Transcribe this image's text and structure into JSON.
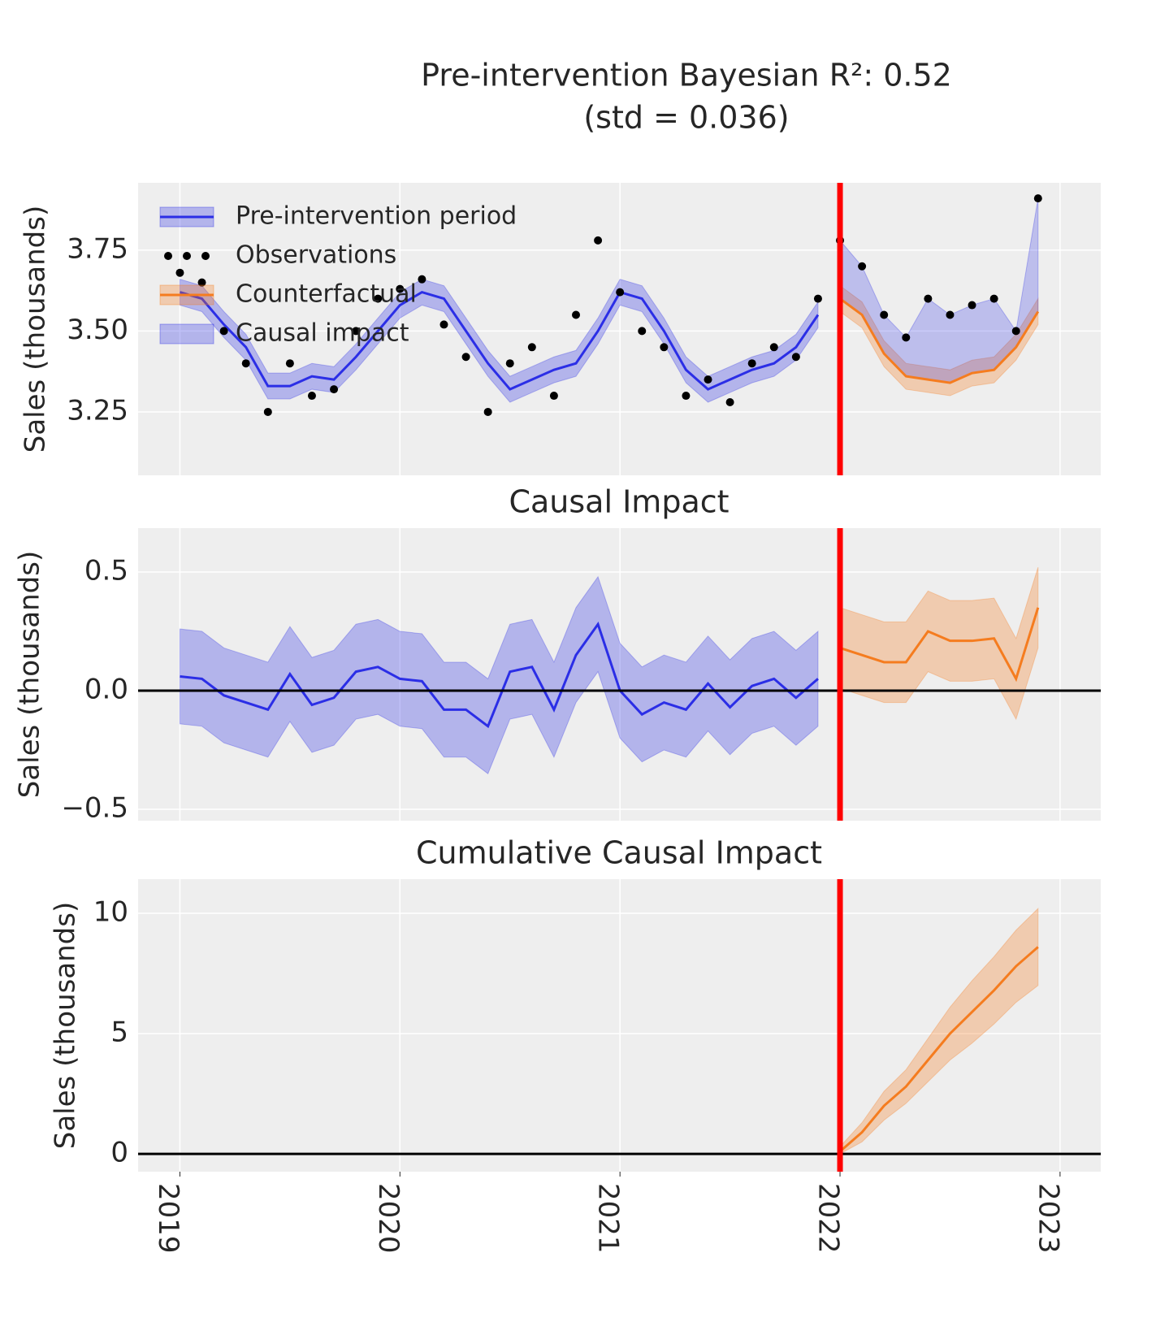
{
  "chart_data": [
    {
      "type": "line",
      "title_lines": [
        "Pre-intervention Bayesian R²: 0.52",
        "(std = 0.036)"
      ],
      "ylabel": "Sales (thousands)",
      "xlim": [
        2018.81,
        2023.185
      ],
      "xticks": [
        2019,
        2020,
        2021,
        2022,
        2023
      ],
      "ylim": [
        3.054,
        3.958
      ],
      "yticks": [
        3.25,
        {
          "value": 3.5,
          "label": "3.50"
        },
        3.75
      ],
      "grid": true,
      "vline": 2022,
      "vline_color": "#ff0000",
      "x": [
        2019.0,
        2019.1,
        2019.2,
        2019.3,
        2019.4,
        2019.5,
        2019.6,
        2019.7,
        2019.8,
        2019.9,
        2020.0,
        2020.1,
        2020.2,
        2020.3,
        2020.4,
        2020.5,
        2020.6,
        2020.7,
        2020.8,
        2020.9,
        2021.0,
        2021.1,
        2021.2,
        2021.3,
        2021.4,
        2021.5,
        2021.6,
        2021.7,
        2021.8,
        2021.9,
        2022.0,
        2022.1,
        2022.2,
        2022.3,
        2022.4,
        2022.5,
        2022.6,
        2022.7,
        2022.8,
        2022.9
      ],
      "series": [
        {
          "name": "Pre-intervention period",
          "kind": "line_band",
          "color": "#2b2ee6",
          "values": [
            3.62,
            3.6,
            3.52,
            3.45,
            3.33,
            3.33,
            3.36,
            3.35,
            3.42,
            3.5,
            3.58,
            3.62,
            3.6,
            3.5,
            3.4,
            3.32,
            3.35,
            3.38,
            3.4,
            3.5,
            3.62,
            3.6,
            3.5,
            3.38,
            3.32,
            3.35,
            3.38,
            3.4,
            3.45,
            3.55,
            null,
            null,
            null,
            null,
            null,
            null,
            null,
            null,
            null,
            null
          ],
          "lower": [
            3.58,
            3.56,
            3.48,
            3.41,
            3.29,
            3.29,
            3.32,
            3.31,
            3.38,
            3.46,
            3.54,
            3.58,
            3.56,
            3.46,
            3.36,
            3.28,
            3.31,
            3.34,
            3.36,
            3.46,
            3.58,
            3.56,
            3.46,
            3.34,
            3.28,
            3.31,
            3.34,
            3.36,
            3.41,
            3.51,
            null,
            null,
            null,
            null,
            null,
            null,
            null,
            null,
            null,
            null
          ],
          "upper": [
            3.66,
            3.64,
            3.56,
            3.49,
            3.37,
            3.37,
            3.4,
            3.39,
            3.46,
            3.54,
            3.62,
            3.66,
            3.64,
            3.54,
            3.44,
            3.36,
            3.39,
            3.42,
            3.44,
            3.54,
            3.66,
            3.64,
            3.54,
            3.42,
            3.36,
            3.39,
            3.42,
            3.44,
            3.49,
            3.59,
            null,
            null,
            null,
            null,
            null,
            null,
            null,
            null,
            null,
            null
          ]
        },
        {
          "name": "Observations",
          "kind": "scatter",
          "color": "#000000",
          "values": [
            3.68,
            3.65,
            3.5,
            3.4,
            3.25,
            3.4,
            3.3,
            3.32,
            3.5,
            3.6,
            3.63,
            3.66,
            3.52,
            3.42,
            3.25,
            3.4,
            3.45,
            3.3,
            3.55,
            3.78,
            3.62,
            3.5,
            3.45,
            3.3,
            3.35,
            3.28,
            3.4,
            3.45,
            3.42,
            3.6,
            3.78,
            3.7,
            3.55,
            3.48,
            3.6,
            3.55,
            3.58,
            3.6,
            3.5,
            3.91
          ]
        },
        {
          "name": "Counterfactual",
          "kind": "line_band",
          "color": "#f57c1f",
          "values": [
            null,
            null,
            null,
            null,
            null,
            null,
            null,
            null,
            null,
            null,
            null,
            null,
            null,
            null,
            null,
            null,
            null,
            null,
            null,
            null,
            null,
            null,
            null,
            null,
            null,
            null,
            null,
            null,
            null,
            null,
            3.6,
            3.55,
            3.43,
            3.36,
            3.35,
            3.34,
            3.37,
            3.38,
            3.45,
            3.56
          ],
          "lower": [
            null,
            null,
            null,
            null,
            null,
            null,
            null,
            null,
            null,
            null,
            null,
            null,
            null,
            null,
            null,
            null,
            null,
            null,
            null,
            null,
            null,
            null,
            null,
            null,
            null,
            null,
            null,
            null,
            null,
            null,
            3.56,
            3.51,
            3.39,
            3.32,
            3.31,
            3.3,
            3.33,
            3.34,
            3.41,
            3.52
          ],
          "upper": [
            null,
            null,
            null,
            null,
            null,
            null,
            null,
            null,
            null,
            null,
            null,
            null,
            null,
            null,
            null,
            null,
            null,
            null,
            null,
            null,
            null,
            null,
            null,
            null,
            null,
            null,
            null,
            null,
            null,
            null,
            3.64,
            3.59,
            3.47,
            3.4,
            3.39,
            3.38,
            3.41,
            3.42,
            3.49,
            3.6
          ]
        },
        {
          "name": "Causal impact",
          "kind": "between",
          "color": "#2b2ee6"
        }
      ]
    },
    {
      "type": "line",
      "title": "Causal Impact",
      "ylabel": "Sales (thousands)",
      "xlim": [
        2018.81,
        2023.185
      ],
      "xticks": [
        2019,
        2020,
        2021,
        2022,
        2023
      ],
      "ylim": [
        -0.548,
        0.685
      ],
      "yticks": [
        {
          "value": -0.5,
          "label": "−0.5"
        },
        {
          "value": 0,
          "label": "0.0"
        },
        0.5
      ],
      "grid": true,
      "vline": 2022,
      "vline_color": "#ff0000",
      "hline": 0,
      "x": [
        2019.0,
        2019.1,
        2019.2,
        2019.3,
        2019.4,
        2019.5,
        2019.6,
        2019.7,
        2019.8,
        2019.9,
        2020.0,
        2020.1,
        2020.2,
        2020.3,
        2020.4,
        2020.5,
        2020.6,
        2020.7,
        2020.8,
        2020.9,
        2021.0,
        2021.1,
        2021.2,
        2021.3,
        2021.4,
        2021.5,
        2021.6,
        2021.7,
        2021.8,
        2021.9,
        2022.0,
        2022.1,
        2022.2,
        2022.3,
        2022.4,
        2022.5,
        2022.6,
        2022.7,
        2022.8,
        2022.9
      ],
      "series": [
        {
          "kind": "line_band",
          "color": "#2b2ee6",
          "values": [
            0.06,
            0.05,
            -0.02,
            -0.05,
            -0.08,
            0.07,
            -0.06,
            -0.03,
            0.08,
            0.1,
            0.05,
            0.04,
            -0.08,
            -0.08,
            -0.15,
            0.08,
            0.1,
            -0.08,
            0.15,
            0.28,
            0,
            -0.1,
            -0.05,
            -0.08,
            0.03,
            -0.07,
            0.02,
            0.05,
            -0.03,
            0.05,
            null,
            null,
            null,
            null,
            null,
            null,
            null,
            null,
            null,
            null
          ],
          "lower": [
            -0.14,
            -0.15,
            -0.22,
            -0.25,
            -0.28,
            -0.13,
            -0.26,
            -0.23,
            -0.12,
            -0.1,
            -0.15,
            -0.16,
            -0.28,
            -0.28,
            -0.35,
            -0.12,
            -0.1,
            -0.28,
            -0.05,
            0.08,
            -0.2,
            -0.3,
            -0.25,
            -0.28,
            -0.17,
            -0.27,
            -0.18,
            -0.15,
            -0.23,
            -0.15,
            null,
            null,
            null,
            null,
            null,
            null,
            null,
            null,
            null,
            null
          ],
          "upper": [
            0.26,
            0.25,
            0.18,
            0.15,
            0.12,
            0.27,
            0.14,
            0.17,
            0.28,
            0.3,
            0.25,
            0.24,
            0.12,
            0.12,
            0.05,
            0.28,
            0.3,
            0.12,
            0.35,
            0.48,
            0.2,
            0.1,
            0.15,
            0.12,
            0.23,
            0.13,
            0.22,
            0.25,
            0.17,
            0.25,
            null,
            null,
            null,
            null,
            null,
            null,
            null,
            null,
            null,
            null
          ]
        },
        {
          "kind": "line_band",
          "color": "#f57c1f",
          "values": [
            null,
            null,
            null,
            null,
            null,
            null,
            null,
            null,
            null,
            null,
            null,
            null,
            null,
            null,
            null,
            null,
            null,
            null,
            null,
            null,
            null,
            null,
            null,
            null,
            null,
            null,
            null,
            null,
            null,
            null,
            0.18,
            0.15,
            0.12,
            0.12,
            0.25,
            0.21,
            0.21,
            0.22,
            0.05,
            0.35
          ],
          "lower": [
            null,
            null,
            null,
            null,
            null,
            null,
            null,
            null,
            null,
            null,
            null,
            null,
            null,
            null,
            null,
            null,
            null,
            null,
            null,
            null,
            null,
            null,
            null,
            null,
            null,
            null,
            null,
            null,
            null,
            null,
            0.01,
            -0.02,
            -0.05,
            -0.05,
            0.08,
            0.04,
            0.04,
            0.05,
            -0.12,
            0.18
          ],
          "upper": [
            null,
            null,
            null,
            null,
            null,
            null,
            null,
            null,
            null,
            null,
            null,
            null,
            null,
            null,
            null,
            null,
            null,
            null,
            null,
            null,
            null,
            null,
            null,
            null,
            null,
            null,
            null,
            null,
            null,
            null,
            0.35,
            0.32,
            0.29,
            0.29,
            0.42,
            0.38,
            0.38,
            0.39,
            0.22,
            0.52
          ]
        }
      ]
    },
    {
      "type": "line",
      "title": "Cumulative Causal Impact",
      "ylabel": "Sales (thousands)",
      "xlim": [
        2018.81,
        2023.185
      ],
      "xticks": [
        2019,
        2020,
        2021,
        2022,
        2023
      ],
      "ylim": [
        -0.74,
        11.42
      ],
      "yticks": [
        0,
        5,
        10
      ],
      "grid": true,
      "vline": 2022,
      "vline_color": "#ff0000",
      "hline": 0,
      "x": [
        2019.0,
        2019.1,
        2019.2,
        2019.3,
        2019.4,
        2019.5,
        2019.6,
        2019.7,
        2019.8,
        2019.9,
        2020.0,
        2020.1,
        2020.2,
        2020.3,
        2020.4,
        2020.5,
        2020.6,
        2020.7,
        2020.8,
        2020.9,
        2021.0,
        2021.1,
        2021.2,
        2021.3,
        2021.4,
        2021.5,
        2021.6,
        2021.7,
        2021.8,
        2021.9,
        2022.0,
        2022.1,
        2022.2,
        2022.3,
        2022.4,
        2022.5,
        2022.6,
        2022.7,
        2022.8,
        2022.9
      ],
      "series": [
        {
          "kind": "line_band",
          "color": "#f57c1f",
          "values": [
            null,
            null,
            null,
            null,
            null,
            null,
            null,
            null,
            null,
            null,
            null,
            null,
            null,
            null,
            null,
            null,
            null,
            null,
            null,
            null,
            null,
            null,
            null,
            null,
            null,
            null,
            null,
            null,
            null,
            null,
            0.1,
            0.9,
            2.0,
            2.8,
            3.9,
            5.0,
            5.9,
            6.8,
            7.8,
            8.6
          ],
          "lower": [
            null,
            null,
            null,
            null,
            null,
            null,
            null,
            null,
            null,
            null,
            null,
            null,
            null,
            null,
            null,
            null,
            null,
            null,
            null,
            null,
            null,
            null,
            null,
            null,
            null,
            null,
            null,
            null,
            null,
            null,
            0,
            0.5,
            1.4,
            2.1,
            3.0,
            3.9,
            4.6,
            5.4,
            6.3,
            7.0
          ],
          "upper": [
            null,
            null,
            null,
            null,
            null,
            null,
            null,
            null,
            null,
            null,
            null,
            null,
            null,
            null,
            null,
            null,
            null,
            null,
            null,
            null,
            null,
            null,
            null,
            null,
            null,
            null,
            null,
            null,
            null,
            null,
            0.3,
            1.3,
            2.6,
            3.5,
            4.8,
            6.1,
            7.2,
            8.2,
            9.3,
            10.2
          ]
        }
      ]
    }
  ]
}
